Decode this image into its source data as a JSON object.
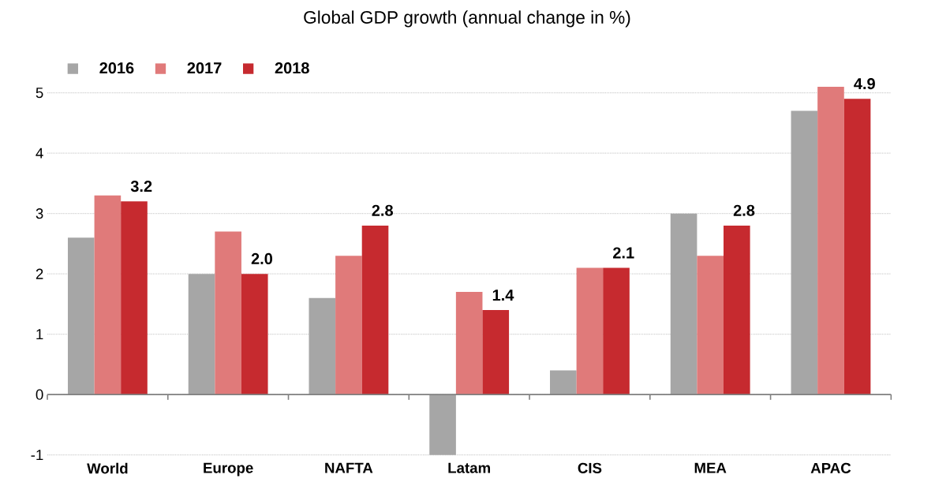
{
  "chart_data": {
    "type": "bar",
    "title": "Global GDP growth (annual change in %)",
    "categories": [
      "World",
      "Europe",
      "NAFTA",
      "Latam",
      "CIS",
      "MEA",
      "APAC"
    ],
    "series": [
      {
        "name": "2016",
        "color": "#a6a6a6",
        "values": [
          2.6,
          2.0,
          1.6,
          -1.0,
          0.4,
          3.0,
          4.7
        ]
      },
      {
        "name": "2017",
        "color": "#e07a7a",
        "values": [
          3.3,
          2.7,
          2.3,
          1.7,
          2.1,
          2.3,
          5.1
        ]
      },
      {
        "name": "2018",
        "color": "#c62a2f",
        "values": [
          3.2,
          2.0,
          2.8,
          1.4,
          2.1,
          2.8,
          4.9
        ],
        "value_labels": [
          "3.2",
          "2.0",
          "2.8",
          "1.4",
          "2.1",
          "2.8",
          "4.9"
        ]
      }
    ],
    "ylim": [
      -1,
      5.1
    ],
    "yticks": [
      -1,
      0,
      1,
      2,
      3,
      4,
      5
    ],
    "grid": "y",
    "legend": "top left"
  }
}
